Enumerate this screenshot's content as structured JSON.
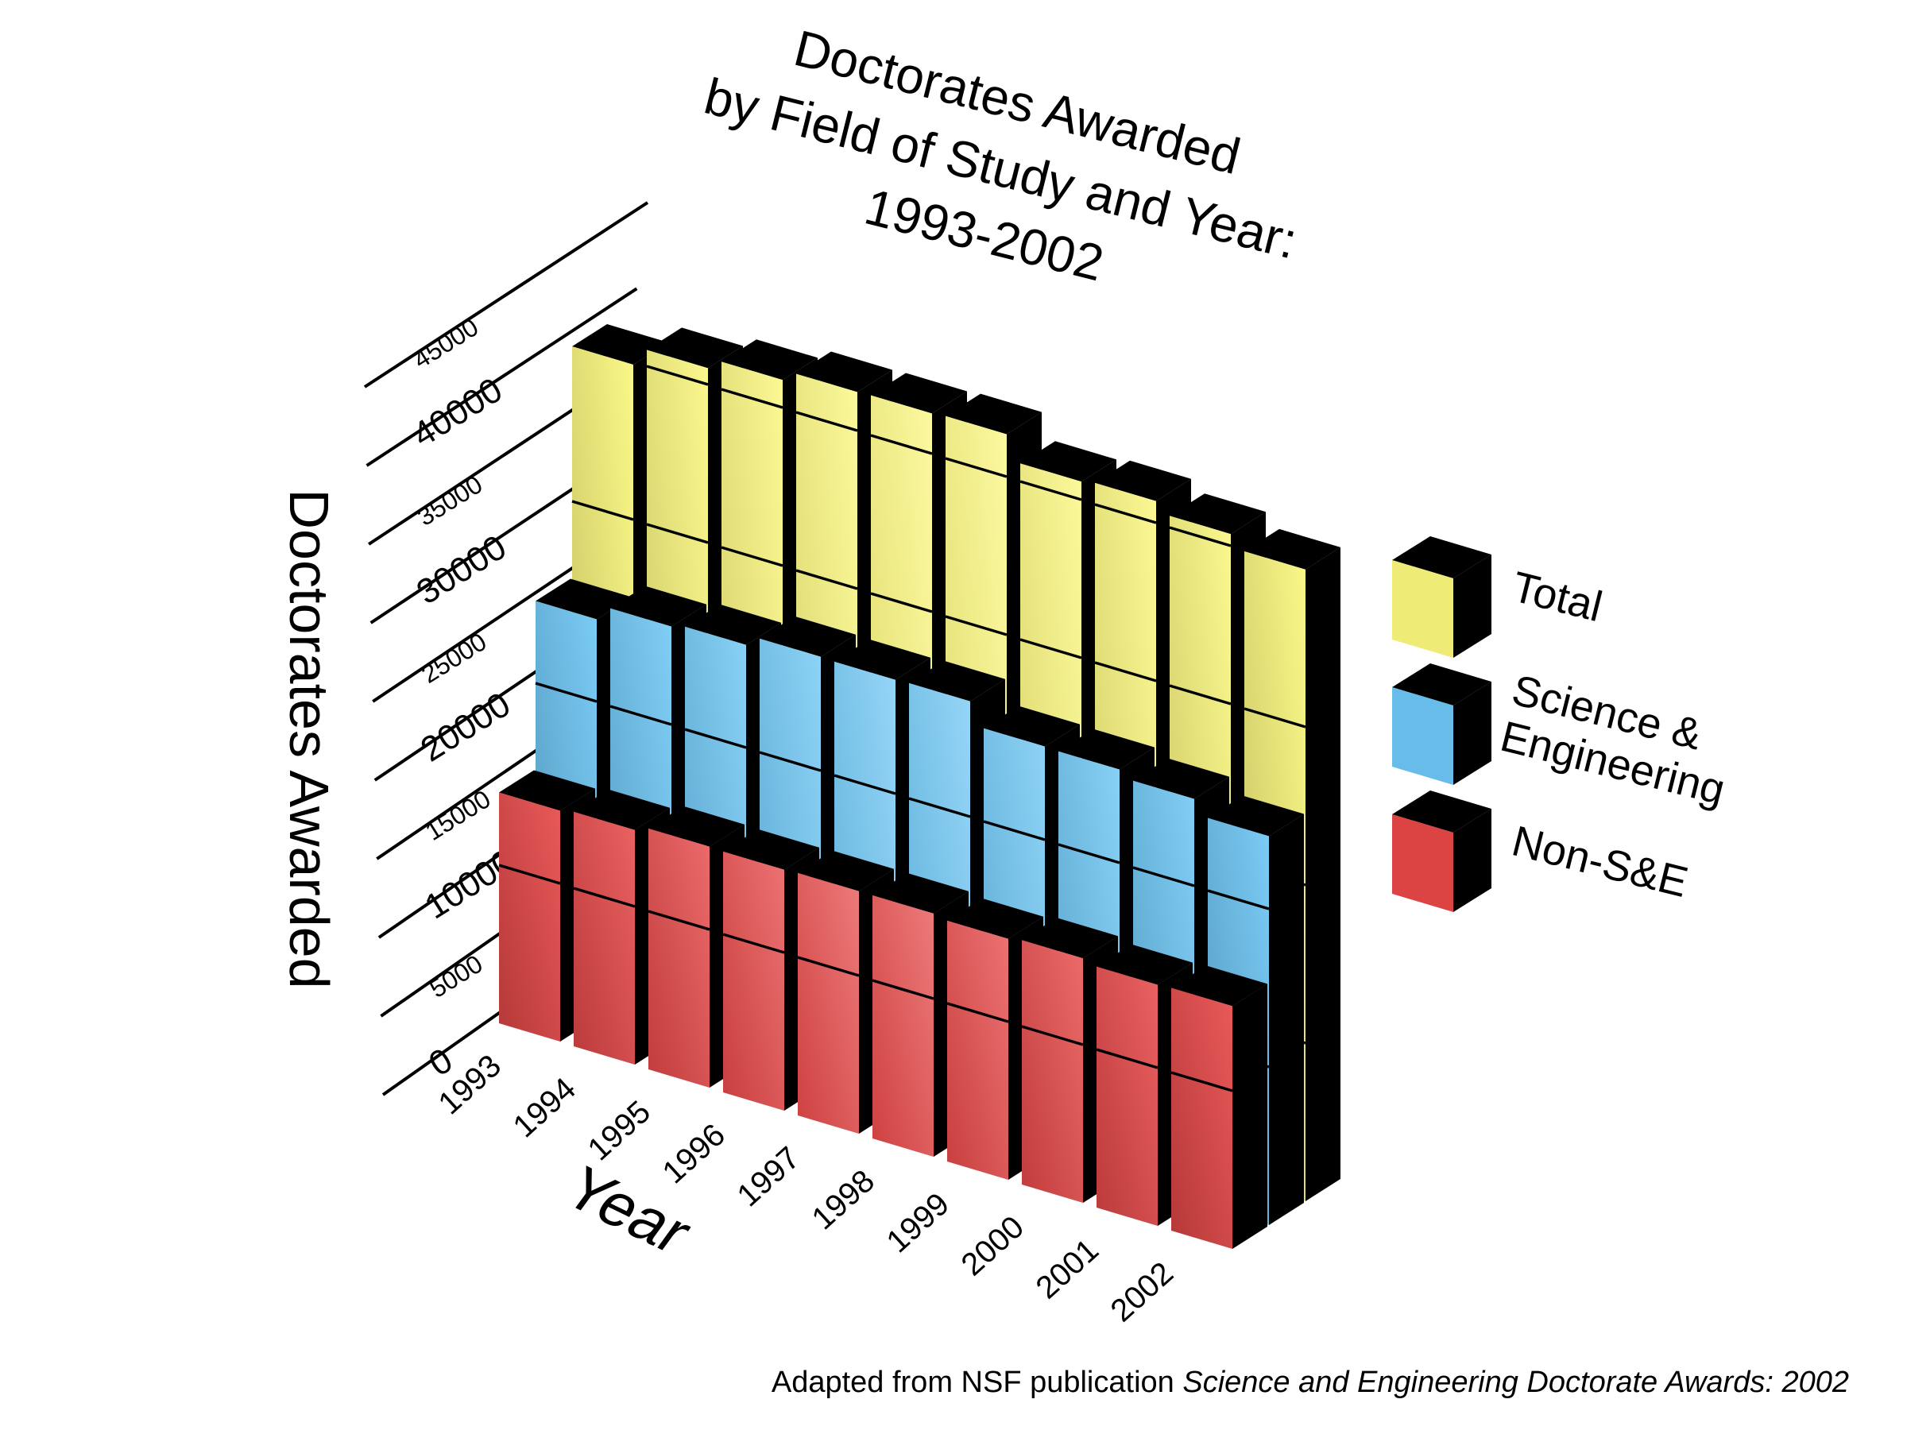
{
  "chart_data": {
    "type": "bar",
    "subtype": "3d-grouped-rows",
    "title": [
      "Doctorates Awarded",
      "by Field of Study and Year:",
      "1993-2002"
    ],
    "xlabel": "Year",
    "ylabel": "Doctorates Awarded",
    "ylim": [
      0,
      45000
    ],
    "yticks": [
      0,
      5000,
      10000,
      15000,
      20000,
      25000,
      30000,
      35000,
      40000,
      45000
    ],
    "categories": [
      "1993",
      "1994",
      "1995",
      "1996",
      "1997",
      "1998",
      "1999",
      "2000",
      "2001",
      "2002"
    ],
    "series": [
      {
        "name": "Total",
        "color": "#fbf77c",
        "values": [
          39800,
          41034,
          41743,
          42437,
          42539,
          42683,
          41140,
          41368,
          40744,
          39955
        ]
      },
      {
        "name": "Science & Engineering",
        "color": "#6cc6f5",
        "values": [
          25200,
          26200,
          26500,
          27200,
          27200,
          27300,
          25900,
          25900,
          25500,
          24600
        ]
      },
      {
        "name": "Non-S&E",
        "color": "#e84848",
        "values": [
          14600,
          14834,
          15243,
          15237,
          15339,
          15383,
          15240,
          15468,
          15244,
          15355
        ]
      }
    ],
    "legend": {
      "placement": "right",
      "entries": [
        "Total",
        [
          "Science &",
          "Engineering"
        ],
        "Non-S&E"
      ]
    },
    "grid": true
  },
  "footer": {
    "prefix": "Adapted from NSF publication ",
    "source_title": "Science and Engineering Doctorate Awards: 2002"
  }
}
